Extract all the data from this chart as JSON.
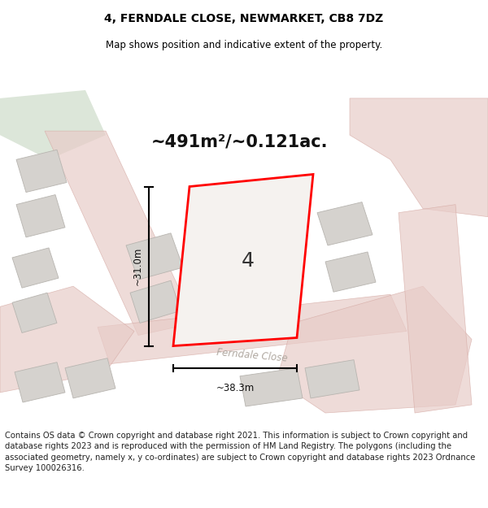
{
  "title": "4, FERNDALE CLOSE, NEWMARKET, CB8 7DZ",
  "subtitle": "Map shows position and indicative extent of the property.",
  "area_label": "~491m²/~0.121ac.",
  "number_label": "4",
  "width_label": "~38.3m",
  "height_label": "~31.0m",
  "street_label": "Ferndale Close",
  "footer": "Contains OS data © Crown copyright and database right 2021. This information is subject to Crown copyright and database rights 2023 and is reproduced with the permission of HM Land Registry. The polygons (including the associated geometry, namely x, y co-ordinates) are subject to Crown copyright and database rights 2023 Ordnance Survey 100026316.",
  "map_bg": "#f2f0ec",
  "road_fill": "#e8ccc8",
  "road_edge": "#d4a8a2",
  "building_color": "#d5d2ce",
  "building_edge": "#b8b5b0",
  "green_color": "#d4e0d0",
  "plot_edge": "#ff0000",
  "plot_fill": "#f5f2ef",
  "white_bg": "#ffffff",
  "title_fontsize": 10,
  "subtitle_fontsize": 8.5,
  "area_fontsize": 15,
  "label_fontsize": 18,
  "dim_fontsize": 8.5,
  "street_fontsize": 8.5,
  "footer_fontsize": 7.2
}
